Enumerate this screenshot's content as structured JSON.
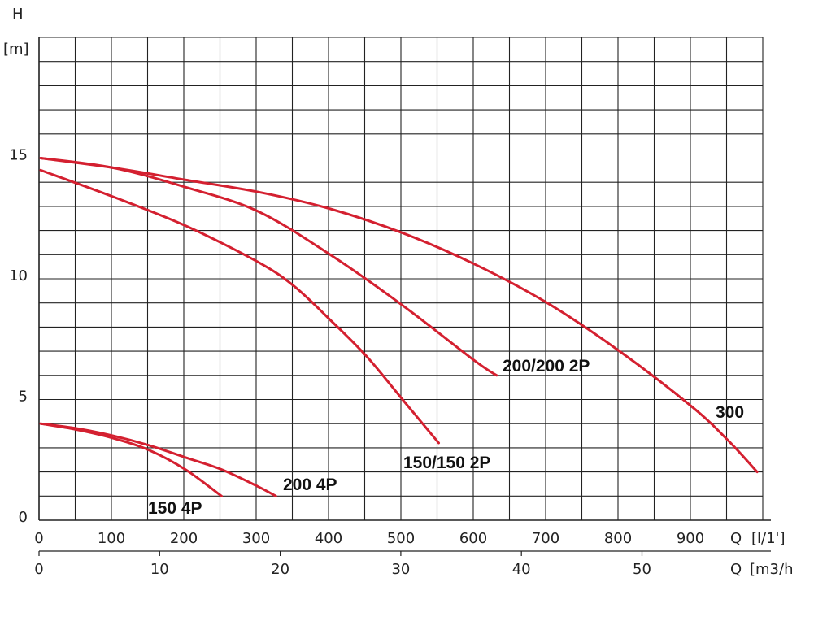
{
  "chart_data": {
    "type": "line",
    "title": "",
    "ylabel": "H",
    "yunit": "[m]",
    "xlabel": "Q",
    "xunit": "[l/1']",
    "x2label": "Q",
    "x2unit": "[m3/h",
    "xlim": [
      0,
      1000
    ],
    "ylim": [
      0,
      20
    ],
    "x_ticks": [
      0,
      100,
      200,
      300,
      400,
      500,
      600,
      700,
      800,
      900
    ],
    "x_tick_labels": [
      "0",
      "100",
      "200",
      "300",
      "400",
      "500",
      "600",
      "700",
      "800",
      "900"
    ],
    "y_ticks": [
      0,
      5,
      10,
      15
    ],
    "y_tick_labels": [
      "0",
      "5",
      "10",
      "15"
    ],
    "x2_ticks": [
      0,
      10,
      20,
      30,
      40,
      50
    ],
    "x2_tick_labels": [
      "0",
      "10",
      "20",
      "30",
      "40",
      "50"
    ],
    "grid": true,
    "series": [
      {
        "name": "300",
        "color": "#d42030",
        "x": [
          0,
          100,
          200,
          300,
          400,
          500,
          600,
          700,
          800,
          900,
          950,
          990
        ],
        "y": [
          15,
          14.6,
          14.1,
          13.6,
          12.9,
          11.9,
          10.6,
          9.0,
          7.0,
          4.7,
          3.3,
          2.0
        ]
      },
      {
        "name": "200/200 2P",
        "color": "#d42030",
        "x": [
          0,
          100,
          200,
          300,
          400,
          500,
          600,
          630
        ],
        "y": [
          15,
          14.6,
          13.8,
          12.8,
          11.0,
          8.9,
          6.6,
          6.0
        ]
      },
      {
        "name": "150/150 2P",
        "color": "#d42030",
        "x": [
          0,
          100,
          200,
          300,
          350,
          400,
          450,
          500,
          550
        ],
        "y": [
          14.5,
          13.4,
          12.2,
          10.7,
          9.7,
          8.3,
          6.8,
          5.0,
          3.2
        ]
      },
      {
        "name": "200 4P",
        "color": "#d42030",
        "x": [
          0,
          50,
          100,
          150,
          200,
          250,
          300,
          325
        ],
        "y": [
          4.0,
          3.8,
          3.5,
          3.1,
          2.6,
          2.1,
          1.4,
          1.0
        ]
      },
      {
        "name": "150 4P",
        "color": "#d42030",
        "x": [
          0,
          50,
          100,
          150,
          200,
          250
        ],
        "y": [
          4.0,
          3.75,
          3.4,
          2.9,
          2.1,
          1.0
        ]
      }
    ]
  }
}
